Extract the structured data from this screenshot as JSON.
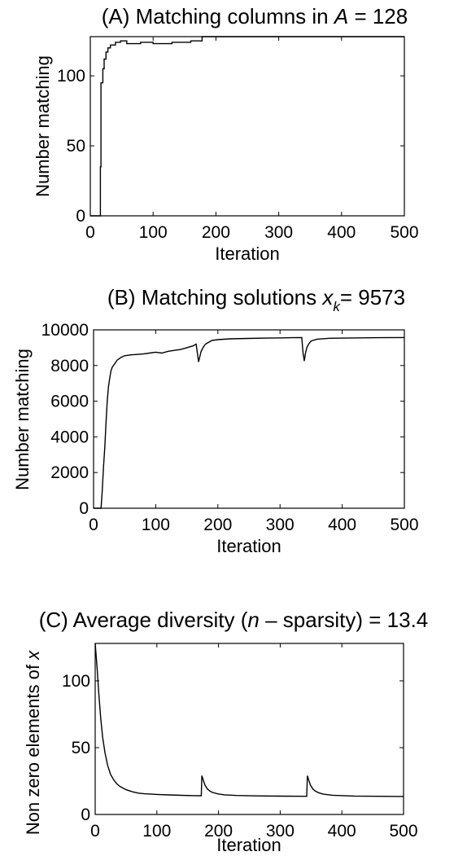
{
  "chart_data": [
    {
      "type": "line",
      "title": "(A) Matching columns in A = 128",
      "title_parts": {
        "pre": "(A) Matching columns in ",
        "var": "A",
        "post": " = 128"
      },
      "xlabel": "Iteration",
      "ylabel": "Number matching",
      "xlim": [
        0,
        500
      ],
      "ylim": [
        0,
        128
      ],
      "xticks": [
        0,
        100,
        200,
        300,
        400,
        500
      ],
      "yticks": [
        0,
        50,
        100
      ],
      "grid": false,
      "series": [
        {
          "style": "step",
          "x": [
            0,
            16,
            16,
            17,
            17,
            20,
            20,
            22,
            22,
            25,
            25,
            28,
            28,
            32,
            32,
            40,
            40,
            48,
            48,
            58,
            58,
            80,
            80,
            100,
            100,
            130,
            130,
            160,
            160,
            178,
            178,
            500
          ],
          "y": [
            0,
            0,
            35,
            35,
            95,
            95,
            105,
            105,
            112,
            112,
            117,
            117,
            120,
            120,
            122,
            122,
            124,
            124,
            125,
            125,
            123,
            123,
            124,
            124,
            123,
            123,
            124,
            124,
            125,
            125,
            128,
            128
          ]
        }
      ]
    },
    {
      "type": "line",
      "title": "(B) Matching solutions x_k = 9573",
      "title_parts": {
        "pre": "(B) Matching solutions ",
        "var": "x",
        "sub": "k",
        "post": "= 9573"
      },
      "xlabel": "Iteration",
      "ylabel": "Number matching",
      "xlim": [
        0,
        500
      ],
      "ylim": [
        0,
        10000
      ],
      "xticks": [
        0,
        100,
        200,
        300,
        400,
        500
      ],
      "yticks": [
        0,
        2000,
        4000,
        6000,
        8000,
        10000
      ],
      "grid": false,
      "series": [
        {
          "style": "step",
          "x": [
            0,
            12,
            14,
            16,
            18,
            20,
            22,
            24,
            26,
            28,
            30,
            34,
            38,
            44,
            50,
            60,
            70,
            80,
            90,
            100,
            110,
            120,
            130,
            140,
            150,
            160,
            165,
            167,
            169,
            171,
            173,
            176,
            180,
            190,
            200,
            220,
            250,
            280,
            300,
            320,
            335,
            337,
            339,
            341,
            343,
            346,
            350,
            360,
            380,
            420,
            460,
            500
          ],
          "y": [
            0,
            0,
            1000,
            2300,
            3400,
            4800,
            6000,
            6800,
            7300,
            7700,
            7900,
            8100,
            8300,
            8450,
            8550,
            8600,
            8620,
            8650,
            8700,
            8750,
            8700,
            8800,
            8850,
            8900,
            9000,
            9100,
            9200,
            8700,
            8200,
            8500,
            8800,
            9000,
            9200,
            9400,
            9450,
            9500,
            9520,
            9540,
            9550,
            9560,
            9570,
            8700,
            8250,
            8700,
            9000,
            9200,
            9380,
            9480,
            9530,
            9550,
            9560,
            9573
          ]
        }
      ]
    },
    {
      "type": "line",
      "title": "(C) Average diversity (n − sparsity) =  13.4",
      "title_parts": {
        "pre": "(C) Average diversity (",
        "var": "n",
        "post": " – sparsity) =  13.4"
      },
      "xlabel": "Iteration",
      "ylabel": "Non zero elements of x",
      "ylabel_parts": {
        "pre": "Non zero elements of ",
        "var": "x"
      },
      "xlim": [
        0,
        500
      ],
      "ylim": [
        0,
        128
      ],
      "xticks": [
        0,
        100,
        200,
        300,
        400,
        500
      ],
      "yticks": [
        0,
        50,
        100
      ],
      "grid": false,
      "series": [
        {
          "style": "line",
          "x": [
            0,
            3,
            6,
            9,
            12,
            16,
            20,
            25,
            30,
            35,
            40,
            50,
            60,
            70,
            80,
            100,
            120,
            140,
            160,
            172,
            173,
            175,
            178,
            182,
            186,
            190,
            200,
            210,
            230,
            260,
            300,
            343,
            344,
            346,
            349,
            353,
            357,
            362,
            370,
            385,
            420,
            460,
            500
          ],
          "y": [
            128,
            110,
            90,
            72,
            58,
            46,
            37,
            30,
            26,
            23,
            21,
            18.5,
            17,
            16,
            15.5,
            15,
            14.6,
            14.3,
            14.1,
            14,
            29,
            26,
            22,
            19,
            17.5,
            16.5,
            15.3,
            14.7,
            14.2,
            13.9,
            13.7,
            13.6,
            29,
            26,
            22,
            19,
            17.5,
            16.3,
            15.2,
            14.4,
            13.8,
            13.6,
            13.5
          ]
        }
      ]
    }
  ]
}
